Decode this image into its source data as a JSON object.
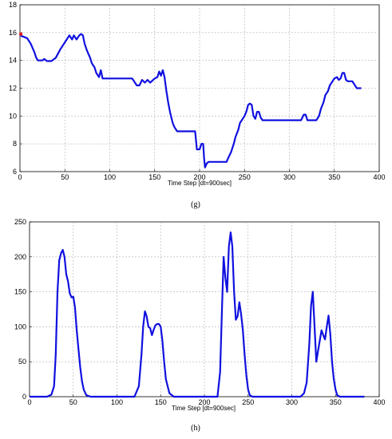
{
  "chart_data": [
    {
      "type": "line",
      "caption": "(g)",
      "xlabel": "Time Step [dt=900sec]",
      "xlim": [
        0,
        400
      ],
      "ylim": [
        6,
        18
      ],
      "xticks": [
        0,
        50,
        100,
        150,
        200,
        250,
        300,
        350,
        400
      ],
      "yticks": [
        6,
        8,
        10,
        12,
        14,
        16,
        18
      ],
      "grid": true,
      "start_marker": {
        "x": 0,
        "y": 15.9,
        "color": "#e02020"
      },
      "series": [
        {
          "color": "#1010e0",
          "x": [
            0,
            8,
            12,
            16,
            18,
            20,
            25,
            27,
            30,
            35,
            40,
            45,
            50,
            55,
            58,
            60,
            63,
            66,
            68,
            70,
            72,
            74,
            76,
            78,
            80,
            83,
            85,
            88,
            90,
            92,
            95,
            100,
            110,
            120,
            125,
            130,
            133,
            136,
            139,
            142,
            145,
            150,
            153,
            155,
            157,
            159,
            161,
            163,
            165,
            167,
            170,
            172,
            175,
            180,
            185,
            195,
            197,
            200,
            202,
            204,
            205,
            206,
            208,
            210,
            215,
            220,
            225,
            230,
            232,
            235,
            238,
            240,
            243,
            245,
            248,
            250,
            252,
            254,
            256,
            258,
            260,
            262,
            264,
            266,
            268,
            270,
            280,
            290,
            300,
            310,
            313,
            316,
            318,
            320,
            325,
            330,
            333,
            335,
            338,
            340,
            343,
            345,
            348,
            350,
            353,
            355,
            357,
            359,
            361,
            363,
            365,
            370,
            375,
            380
          ],
          "y": [
            15.8,
            15.6,
            15.2,
            14.6,
            14.2,
            14.0,
            14.0,
            14.1,
            13.95,
            13.95,
            14.2,
            14.8,
            15.3,
            15.8,
            15.5,
            15.8,
            15.5,
            15.8,
            15.9,
            15.8,
            15.2,
            14.8,
            14.5,
            14.2,
            13.8,
            13.5,
            13.1,
            12.8,
            13.3,
            12.7,
            12.7,
            12.7,
            12.7,
            12.7,
            12.7,
            12.2,
            12.2,
            12.6,
            12.4,
            12.6,
            12.4,
            12.7,
            12.8,
            13.2,
            12.9,
            13.3,
            12.8,
            11.8,
            11.0,
            10.3,
            9.5,
            9.2,
            8.9,
            8.9,
            8.9,
            8.9,
            7.6,
            7.6,
            8.0,
            8.0,
            7.0,
            6.3,
            6.6,
            6.7,
            6.7,
            6.7,
            6.7,
            6.7,
            7.0,
            7.4,
            8.0,
            8.5,
            9.0,
            9.5,
            9.8,
            10.0,
            10.3,
            10.8,
            10.9,
            10.8,
            10.0,
            9.8,
            10.3,
            10.3,
            9.9,
            9.7,
            9.7,
            9.7,
            9.7,
            9.7,
            9.7,
            10.1,
            10.1,
            9.7,
            9.7,
            9.7,
            10.0,
            10.5,
            11.0,
            11.5,
            11.8,
            12.2,
            12.5,
            12.7,
            12.8,
            12.6,
            12.7,
            13.1,
            13.1,
            12.6,
            12.5,
            12.5,
            12.0,
            12.0
          ]
        }
      ]
    },
    {
      "type": "line",
      "caption": "(h)",
      "xlabel": "Time Step [dt=900sec]",
      "xlim": [
        0,
        400
      ],
      "ylim": [
        0,
        250
      ],
      "xticks": [
        0,
        50,
        100,
        150,
        200,
        250,
        300,
        350,
        400
      ],
      "yticks": [
        0,
        50,
        100,
        150,
        200,
        250
      ],
      "grid": true,
      "series": [
        {
          "color": "#1010e0",
          "x": [
            0,
            20,
            25,
            28,
            30,
            32,
            34,
            36,
            38,
            40,
            42,
            44,
            46,
            48,
            50,
            52,
            54,
            56,
            58,
            60,
            62,
            65,
            70,
            120,
            125,
            128,
            130,
            132,
            134,
            136,
            138,
            140,
            142,
            144,
            146,
            148,
            150,
            152,
            154,
            156,
            160,
            165,
            170,
            215,
            218,
            220,
            222,
            224,
            226,
            228,
            230,
            232,
            234,
            236,
            238,
            240,
            242,
            244,
            246,
            248,
            250,
            252,
            255,
            260,
            310,
            314,
            317,
            320,
            322,
            324,
            326,
            328,
            330,
            332,
            334,
            336,
            338,
            340,
            342,
            344,
            346,
            348,
            350,
            352,
            355,
            360,
            383
          ],
          "y": [
            0,
            0,
            3,
            15,
            60,
            150,
            195,
            205,
            210,
            200,
            175,
            165,
            148,
            142,
            143,
            128,
            95,
            68,
            42,
            22,
            10,
            2,
            0,
            0,
            15,
            60,
            100,
            122,
            115,
            100,
            98,
            88,
            96,
            102,
            104,
            104,
            100,
            80,
            50,
            25,
            5,
            0,
            0,
            0,
            35,
            120,
            200,
            170,
            150,
            215,
            235,
            215,
            150,
            110,
            115,
            135,
            118,
            95,
            60,
            30,
            10,
            2,
            0,
            0,
            0,
            5,
            20,
            75,
            130,
            150,
            100,
            50,
            65,
            80,
            95,
            88,
            82,
            100,
            116,
            90,
            50,
            25,
            10,
            2,
            0,
            0,
            0
          ]
        }
      ]
    }
  ]
}
